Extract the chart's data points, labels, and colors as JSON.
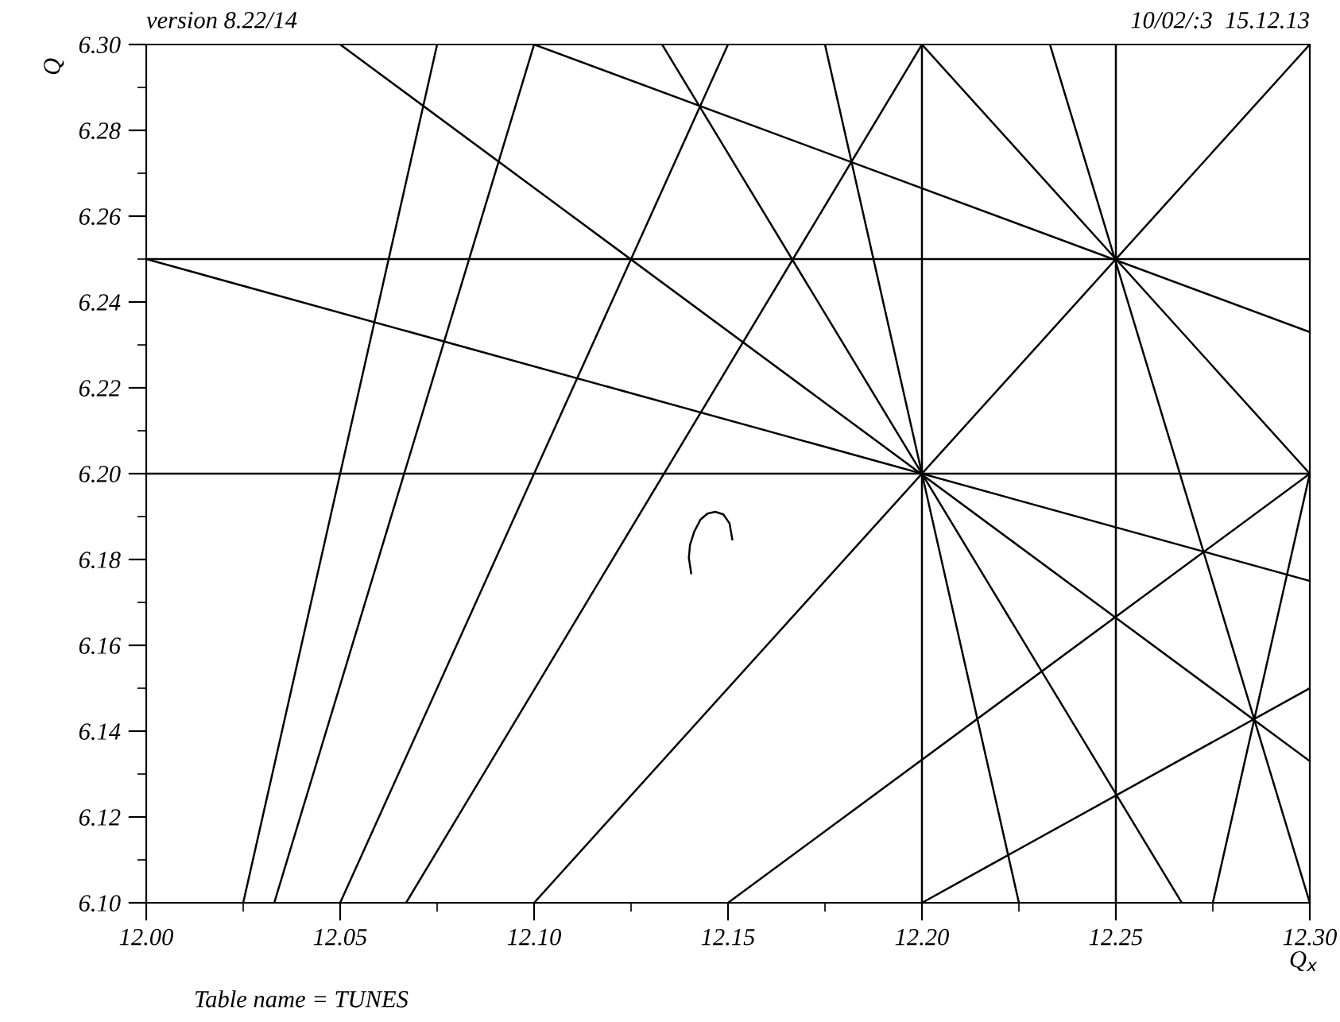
{
  "chart_data": {
    "type": "line",
    "title": "version 8.22/14",
    "subtitle": "10/02/:3  15.12.13",
    "xlabel": "Q$_{x}$",
    "ylabel": "Q",
    "annotations": [
      "Table name = TUNES"
    ],
    "xlim": [
      12.0,
      12.3
    ],
    "ylim": [
      6.1,
      6.3
    ],
    "xticks": [
      {
        "value": 12.0,
        "label": "12.00"
      },
      {
        "value": 12.025,
        "label": null
      },
      {
        "value": 12.05,
        "label": "12.05"
      },
      {
        "value": 12.075,
        "label": null
      },
      {
        "value": 12.1,
        "label": "12.10"
      },
      {
        "value": 12.125,
        "label": null
      },
      {
        "value": 12.15,
        "label": "12.15"
      },
      {
        "value": 12.175,
        "label": null
      },
      {
        "value": 12.2,
        "label": "12.20"
      },
      {
        "value": 12.225,
        "label": null
      },
      {
        "value": 12.25,
        "label": "12.25"
      },
      {
        "value": 12.275,
        "label": null
      },
      {
        "value": 12.3,
        "label": "12.30"
      }
    ],
    "yticks": [
      {
        "value": 6.1,
        "label": "6.10"
      },
      {
        "value": 6.11,
        "label": null
      },
      {
        "value": 6.12,
        "label": "6.12"
      },
      {
        "value": 6.13,
        "label": null
      },
      {
        "value": 6.14,
        "label": "6.14"
      },
      {
        "value": 6.15,
        "label": null
      },
      {
        "value": 6.16,
        "label": "6.16"
      },
      {
        "value": 6.17,
        "label": null
      },
      {
        "value": 6.18,
        "label": "6.18"
      },
      {
        "value": 6.19,
        "label": null
      },
      {
        "value": 6.2,
        "label": "6.20"
      },
      {
        "value": 6.21,
        "label": null
      },
      {
        "value": 6.22,
        "label": "6.22"
      },
      {
        "value": 6.23,
        "label": null
      },
      {
        "value": 6.24,
        "label": "6.24"
      },
      {
        "value": 6.25,
        "label": null
      },
      {
        "value": 6.26,
        "label": "6.26"
      },
      {
        "value": 6.27,
        "label": null
      },
      {
        "value": 6.28,
        "label": "6.28"
      },
      {
        "value": 6.29,
        "label": null
      },
      {
        "value": 6.3,
        "label": "6.30"
      }
    ],
    "grid": false,
    "legend": false,
    "marker": "none",
    "line_style": "solid",
    "series": [
      {
        "color": "#000000",
        "x": [
          12.0,
          12.3
        ],
        "values": [
          6.25,
          6.25
        ]
      },
      {
        "color": "#000000",
        "x": [
          12.0,
          12.3
        ],
        "values": [
          6.2,
          6.2
        ]
      },
      {
        "color": "#000000",
        "x": [
          12.2,
          12.2
        ],
        "values": [
          6.1,
          6.3
        ]
      },
      {
        "color": "#000000",
        "x": [
          12.25,
          12.25
        ],
        "values": [
          6.1,
          6.3
        ]
      },
      {
        "color": "#000000",
        "x": [
          12.1,
          12.3
        ],
        "values": [
          6.1,
          6.3
        ]
      },
      {
        "color": "#000000",
        "x": [
          12.0,
          12.3
        ],
        "values": [
          6.25,
          6.175
        ]
      },
      {
        "color": "#000000",
        "x": [
          12.025,
          12.075
        ],
        "values": [
          6.1,
          6.3
        ]
      },
      {
        "color": "#000000",
        "x": [
          12.033,
          12.1
        ],
        "values": [
          6.1,
          6.3
        ]
      },
      {
        "color": "#000000",
        "x": [
          12.05,
          12.15
        ],
        "values": [
          6.1,
          6.3
        ]
      },
      {
        "color": "#000000",
        "x": [
          12.067,
          12.2
        ],
        "values": [
          6.1,
          6.3
        ]
      },
      {
        "color": "#000000",
        "x": [
          12.05,
          12.3
        ],
        "values": [
          6.3,
          6.133
        ]
      },
      {
        "color": "#000000",
        "x": [
          12.1,
          12.3
        ],
        "values": [
          6.3,
          6.233
        ]
      },
      {
        "color": "#000000",
        "x": [
          12.133,
          12.267
        ],
        "values": [
          6.3,
          6.1
        ]
      },
      {
        "color": "#000000",
        "x": [
          12.175,
          12.225
        ],
        "values": [
          6.3,
          6.1
        ]
      },
      {
        "color": "#000000",
        "x": [
          12.2,
          12.3
        ],
        "values": [
          6.3,
          6.2
        ]
      },
      {
        "color": "#000000",
        "x": [
          12.233,
          12.3
        ],
        "values": [
          6.3,
          6.1
        ]
      },
      {
        "color": "#000000",
        "x": [
          12.15,
          12.3
        ],
        "values": [
          6.1,
          6.2
        ]
      },
      {
        "color": "#000000",
        "x": [
          12.2,
          12.3
        ],
        "values": [
          6.1,
          6.15
        ]
      },
      {
        "color": "#000000",
        "x": [
          12.275,
          12.3
        ],
        "values": [
          6.1,
          6.2
        ]
      },
      {
        "color": "#000000",
        "x": [
          12.1405,
          12.1399,
          12.1402,
          12.1413,
          12.1429,
          12.1447,
          12.1467,
          12.1488,
          12.1504,
          12.1511
        ],
        "values": [
          6.1768,
          6.1804,
          6.1834,
          6.1865,
          6.1893,
          6.1907,
          6.1911,
          6.1905,
          6.1884,
          6.1847
        ]
      }
    ]
  }
}
